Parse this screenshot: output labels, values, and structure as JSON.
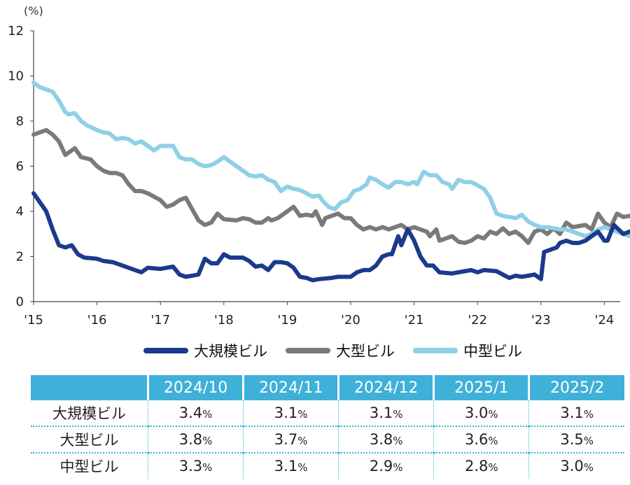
{
  "chart_data": {
    "type": "line",
    "unit_label": "(%)",
    "yticks": [
      "0",
      "2",
      "4",
      "6",
      "8",
      "10",
      "12"
    ],
    "ylim": [
      0,
      12
    ],
    "xticks": [
      "'15",
      "'16",
      "'17",
      "'18",
      "'19",
      "'20",
      "'21",
      "'22",
      "'23",
      "'24"
    ],
    "xlim": [
      2015,
      2024.25
    ],
    "grid": false,
    "legend_position": "bottom",
    "series": [
      {
        "name": "大規模ビル",
        "color": "#1b3a8c",
        "points": [
          [
            2015.0,
            4.8
          ],
          [
            2015.1,
            4.4
          ],
          [
            2015.2,
            4.0
          ],
          [
            2015.3,
            3.2
          ],
          [
            2015.4,
            2.5
          ],
          [
            2015.5,
            2.4
          ],
          [
            2015.6,
            2.5
          ],
          [
            2015.7,
            2.1
          ],
          [
            2015.8,
            1.95
          ],
          [
            2016.0,
            1.9
          ],
          [
            2016.1,
            1.8
          ],
          [
            2016.25,
            1.75
          ],
          [
            2016.4,
            1.6
          ],
          [
            2016.6,
            1.4
          ],
          [
            2016.7,
            1.3
          ],
          [
            2016.8,
            1.5
          ],
          [
            2017.0,
            1.45
          ],
          [
            2017.2,
            1.55
          ],
          [
            2017.3,
            1.2
          ],
          [
            2017.4,
            1.1
          ],
          [
            2017.5,
            1.15
          ],
          [
            2017.6,
            1.2
          ],
          [
            2017.7,
            1.9
          ],
          [
            2017.8,
            1.7
          ],
          [
            2017.9,
            1.7
          ],
          [
            2018.0,
            2.1
          ],
          [
            2018.1,
            1.95
          ],
          [
            2018.3,
            1.95
          ],
          [
            2018.4,
            1.8
          ],
          [
            2018.5,
            1.55
          ],
          [
            2018.6,
            1.6
          ],
          [
            2018.7,
            1.4
          ],
          [
            2018.8,
            1.75
          ],
          [
            2018.9,
            1.75
          ],
          [
            2019.0,
            1.7
          ],
          [
            2019.1,
            1.5
          ],
          [
            2019.2,
            1.1
          ],
          [
            2019.3,
            1.05
          ],
          [
            2019.4,
            0.95
          ],
          [
            2019.5,
            1.0
          ],
          [
            2019.7,
            1.05
          ],
          [
            2019.8,
            1.1
          ],
          [
            2020.0,
            1.1
          ],
          [
            2020.1,
            1.3
          ],
          [
            2020.2,
            1.4
          ],
          [
            2020.3,
            1.4
          ],
          [
            2020.4,
            1.6
          ],
          [
            2020.5,
            2.0
          ],
          [
            2020.6,
            2.1
          ],
          [
            2020.65,
            2.1
          ],
          [
            2020.75,
            2.9
          ],
          [
            2020.8,
            2.5
          ],
          [
            2020.9,
            3.2
          ],
          [
            2021.0,
            2.7
          ],
          [
            2021.1,
            2.0
          ],
          [
            2021.2,
            1.6
          ],
          [
            2021.3,
            1.6
          ],
          [
            2021.4,
            1.3
          ],
          [
            2021.6,
            1.25
          ],
          [
            2021.8,
            1.35
          ],
          [
            2021.9,
            1.4
          ],
          [
            2022.0,
            1.3
          ],
          [
            2022.1,
            1.4
          ],
          [
            2022.3,
            1.35
          ],
          [
            2022.4,
            1.2
          ],
          [
            2022.5,
            1.05
          ],
          [
            2022.6,
            1.15
          ],
          [
            2022.7,
            1.1
          ],
          [
            2022.8,
            1.15
          ],
          [
            2022.9,
            1.2
          ],
          [
            2023.0,
            1.0
          ],
          [
            2023.05,
            2.2
          ],
          [
            2023.15,
            2.3
          ],
          [
            2023.25,
            2.4
          ],
          [
            2023.3,
            2.6
          ],
          [
            2023.4,
            2.7
          ],
          [
            2023.5,
            2.6
          ],
          [
            2023.6,
            2.6
          ],
          [
            2023.7,
            2.7
          ],
          [
            2023.8,
            2.9
          ],
          [
            2023.9,
            3.1
          ],
          [
            2024.0,
            2.7
          ],
          [
            2024.05,
            2.7
          ],
          [
            2024.15,
            3.4
          ],
          [
            2024.3,
            3.0
          ],
          [
            2024.4,
            3.1
          ],
          [
            2024.5,
            3.05
          ],
          [
            2024.6,
            3.1
          ]
        ]
      },
      {
        "name": "大型ビル",
        "color": "#7a7a7a",
        "points": [
          [
            2015.0,
            7.4
          ],
          [
            2015.1,
            7.5
          ],
          [
            2015.2,
            7.6
          ],
          [
            2015.3,
            7.4
          ],
          [
            2015.4,
            7.1
          ],
          [
            2015.5,
            6.5
          ],
          [
            2015.6,
            6.7
          ],
          [
            2015.65,
            6.8
          ],
          [
            2015.75,
            6.4
          ],
          [
            2015.9,
            6.3
          ],
          [
            2016.0,
            6.0
          ],
          [
            2016.1,
            5.8
          ],
          [
            2016.2,
            5.7
          ],
          [
            2016.3,
            5.7
          ],
          [
            2016.4,
            5.6
          ],
          [
            2016.5,
            5.2
          ],
          [
            2016.6,
            4.9
          ],
          [
            2016.7,
            4.9
          ],
          [
            2016.8,
            4.8
          ],
          [
            2017.0,
            4.5
          ],
          [
            2017.1,
            4.2
          ],
          [
            2017.2,
            4.3
          ],
          [
            2017.3,
            4.5
          ],
          [
            2017.4,
            4.6
          ],
          [
            2017.5,
            4.1
          ],
          [
            2017.6,
            3.6
          ],
          [
            2017.7,
            3.4
          ],
          [
            2017.8,
            3.5
          ],
          [
            2017.9,
            3.9
          ],
          [
            2018.0,
            3.65
          ],
          [
            2018.2,
            3.6
          ],
          [
            2018.3,
            3.7
          ],
          [
            2018.4,
            3.65
          ],
          [
            2018.5,
            3.5
          ],
          [
            2018.6,
            3.5
          ],
          [
            2018.7,
            3.7
          ],
          [
            2018.75,
            3.6
          ],
          [
            2018.85,
            3.7
          ],
          [
            2019.0,
            4.0
          ],
          [
            2019.1,
            4.2
          ],
          [
            2019.2,
            3.8
          ],
          [
            2019.3,
            3.85
          ],
          [
            2019.4,
            3.8
          ],
          [
            2019.45,
            4.0
          ],
          [
            2019.55,
            3.4
          ],
          [
            2019.6,
            3.7
          ],
          [
            2019.7,
            3.8
          ],
          [
            2019.8,
            3.9
          ],
          [
            2019.9,
            3.7
          ],
          [
            2020.0,
            3.7
          ],
          [
            2020.1,
            3.4
          ],
          [
            2020.2,
            3.2
          ],
          [
            2020.3,
            3.3
          ],
          [
            2020.4,
            3.2
          ],
          [
            2020.5,
            3.3
          ],
          [
            2020.6,
            3.2
          ],
          [
            2020.7,
            3.3
          ],
          [
            2020.8,
            3.4
          ],
          [
            2020.9,
            3.2
          ],
          [
            2021.0,
            3.3
          ],
          [
            2021.1,
            3.2
          ],
          [
            2021.2,
            3.1
          ],
          [
            2021.25,
            2.9
          ],
          [
            2021.35,
            3.2
          ],
          [
            2021.4,
            2.7
          ],
          [
            2021.5,
            2.8
          ],
          [
            2021.6,
            2.9
          ],
          [
            2021.7,
            2.65
          ],
          [
            2021.8,
            2.6
          ],
          [
            2021.9,
            2.7
          ],
          [
            2022.0,
            2.9
          ],
          [
            2022.1,
            2.8
          ],
          [
            2022.2,
            3.1
          ],
          [
            2022.3,
            3.0
          ],
          [
            2022.4,
            3.25
          ],
          [
            2022.5,
            3.0
          ],
          [
            2022.6,
            3.1
          ],
          [
            2022.7,
            2.9
          ],
          [
            2022.8,
            2.6
          ],
          [
            2022.9,
            3.1
          ],
          [
            2023.0,
            3.2
          ],
          [
            2023.1,
            3.0
          ],
          [
            2023.2,
            3.25
          ],
          [
            2023.3,
            3.0
          ],
          [
            2023.4,
            3.5
          ],
          [
            2023.5,
            3.3
          ],
          [
            2023.6,
            3.35
          ],
          [
            2023.7,
            3.4
          ],
          [
            2023.8,
            3.2
          ],
          [
            2023.9,
            3.9
          ],
          [
            2024.0,
            3.5
          ],
          [
            2024.1,
            3.3
          ],
          [
            2024.2,
            3.9
          ],
          [
            2024.3,
            3.75
          ],
          [
            2024.4,
            3.8
          ],
          [
            2024.5,
            3.7
          ],
          [
            2024.6,
            3.5
          ]
        ]
      },
      {
        "name": "中型ビル",
        "color": "#8fd0e6",
        "points": [
          [
            2015.0,
            9.7
          ],
          [
            2015.1,
            9.5
          ],
          [
            2015.2,
            9.4
          ],
          [
            2015.3,
            9.3
          ],
          [
            2015.4,
            8.9
          ],
          [
            2015.5,
            8.4
          ],
          [
            2015.55,
            8.3
          ],
          [
            2015.65,
            8.35
          ],
          [
            2015.75,
            8.0
          ],
          [
            2015.85,
            7.8
          ],
          [
            2016.0,
            7.6
          ],
          [
            2016.1,
            7.5
          ],
          [
            2016.2,
            7.45
          ],
          [
            2016.3,
            7.2
          ],
          [
            2016.4,
            7.25
          ],
          [
            2016.5,
            7.2
          ],
          [
            2016.6,
            7.0
          ],
          [
            2016.7,
            7.1
          ],
          [
            2016.8,
            6.9
          ],
          [
            2016.9,
            6.7
          ],
          [
            2017.0,
            6.9
          ],
          [
            2017.1,
            6.9
          ],
          [
            2017.2,
            6.9
          ],
          [
            2017.3,
            6.4
          ],
          [
            2017.4,
            6.3
          ],
          [
            2017.5,
            6.3
          ],
          [
            2017.6,
            6.1
          ],
          [
            2017.7,
            6.0
          ],
          [
            2017.8,
            6.05
          ],
          [
            2017.9,
            6.2
          ],
          [
            2018.0,
            6.4
          ],
          [
            2018.1,
            6.2
          ],
          [
            2018.2,
            6.0
          ],
          [
            2018.3,
            5.8
          ],
          [
            2018.4,
            5.6
          ],
          [
            2018.5,
            5.55
          ],
          [
            2018.6,
            5.6
          ],
          [
            2018.7,
            5.4
          ],
          [
            2018.8,
            5.3
          ],
          [
            2018.9,
            4.9
          ],
          [
            2019.0,
            5.1
          ],
          [
            2019.1,
            5.0
          ],
          [
            2019.2,
            4.95
          ],
          [
            2019.3,
            4.8
          ],
          [
            2019.4,
            4.65
          ],
          [
            2019.5,
            4.7
          ],
          [
            2019.55,
            4.5
          ],
          [
            2019.65,
            4.2
          ],
          [
            2019.75,
            4.1
          ],
          [
            2019.85,
            4.4
          ],
          [
            2019.95,
            4.5
          ],
          [
            2020.05,
            4.9
          ],
          [
            2020.15,
            5.0
          ],
          [
            2020.25,
            5.2
          ],
          [
            2020.3,
            5.5
          ],
          [
            2020.4,
            5.4
          ],
          [
            2020.5,
            5.2
          ],
          [
            2020.6,
            5.05
          ],
          [
            2020.7,
            5.3
          ],
          [
            2020.8,
            5.3
          ],
          [
            2020.9,
            5.2
          ],
          [
            2021.0,
            5.3
          ],
          [
            2021.05,
            5.2
          ],
          [
            2021.15,
            5.75
          ],
          [
            2021.25,
            5.6
          ],
          [
            2021.35,
            5.6
          ],
          [
            2021.45,
            5.3
          ],
          [
            2021.55,
            5.2
          ],
          [
            2021.6,
            5.0
          ],
          [
            2021.7,
            5.4
          ],
          [
            2021.8,
            5.3
          ],
          [
            2021.9,
            5.3
          ],
          [
            2022.0,
            5.15
          ],
          [
            2022.1,
            5.0
          ],
          [
            2022.2,
            4.6
          ],
          [
            2022.3,
            3.9
          ],
          [
            2022.4,
            3.8
          ],
          [
            2022.5,
            3.75
          ],
          [
            2022.6,
            3.7
          ],
          [
            2022.7,
            3.85
          ],
          [
            2022.8,
            3.55
          ],
          [
            2022.9,
            3.4
          ],
          [
            2023.0,
            3.3
          ],
          [
            2023.1,
            3.3
          ],
          [
            2023.2,
            3.25
          ],
          [
            2023.3,
            3.2
          ],
          [
            2023.4,
            3.2
          ],
          [
            2023.5,
            3.1
          ],
          [
            2023.6,
            3.0
          ],
          [
            2023.7,
            2.9
          ],
          [
            2023.8,
            3.0
          ],
          [
            2023.9,
            3.2
          ],
          [
            2024.0,
            3.3
          ],
          [
            2024.1,
            3.2
          ],
          [
            2024.2,
            3.1
          ],
          [
            2024.3,
            3.0
          ],
          [
            2024.4,
            2.9
          ],
          [
            2024.5,
            2.9
          ],
          [
            2024.6,
            3.0
          ]
        ]
      }
    ]
  },
  "table": {
    "columns": [
      "2024/10",
      "2024/11",
      "2024/12",
      "2025/1",
      "2025/2"
    ],
    "unit": "%",
    "rows": [
      {
        "label": "大規模ビル",
        "values": [
          "3.4",
          "3.1",
          "3.1",
          "3.0",
          "3.1"
        ]
      },
      {
        "label": "大型ビル",
        "values": [
          "3.8",
          "3.7",
          "3.8",
          "3.6",
          "3.5"
        ]
      },
      {
        "label": "中型ビル",
        "values": [
          "3.3",
          "3.1",
          "2.9",
          "2.8",
          "3.0"
        ]
      }
    ]
  }
}
